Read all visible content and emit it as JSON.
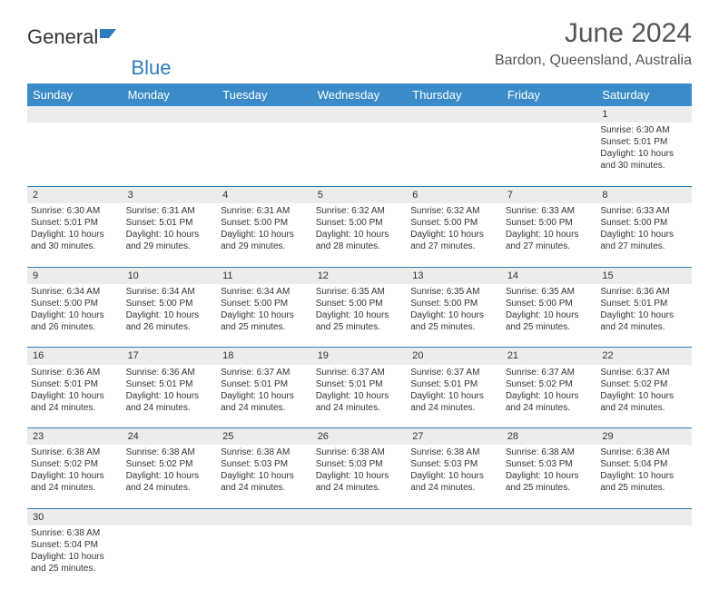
{
  "logo": {
    "text1": "General",
    "text2": "Blue"
  },
  "title": "June 2024",
  "location": "Bardon, Queensland, Australia",
  "colors": {
    "header_bg": "#3b8bc8",
    "header_text": "#ffffff",
    "daynum_bg": "#ececec",
    "row_border": "#2f7bbf",
    "text": "#333333"
  },
  "weekdays": [
    "Sunday",
    "Monday",
    "Tuesday",
    "Wednesday",
    "Thursday",
    "Friday",
    "Saturday"
  ],
  "weeks": [
    {
      "nums": [
        "",
        "",
        "",
        "",
        "",
        "",
        "1"
      ],
      "cells": [
        null,
        null,
        null,
        null,
        null,
        null,
        {
          "sunrise": "6:30 AM",
          "sunset": "5:01 PM",
          "daylight": "10 hours and 30 minutes."
        }
      ]
    },
    {
      "nums": [
        "2",
        "3",
        "4",
        "5",
        "6",
        "7",
        "8"
      ],
      "cells": [
        {
          "sunrise": "6:30 AM",
          "sunset": "5:01 PM",
          "daylight": "10 hours and 30 minutes."
        },
        {
          "sunrise": "6:31 AM",
          "sunset": "5:01 PM",
          "daylight": "10 hours and 29 minutes."
        },
        {
          "sunrise": "6:31 AM",
          "sunset": "5:00 PM",
          "daylight": "10 hours and 29 minutes."
        },
        {
          "sunrise": "6:32 AM",
          "sunset": "5:00 PM",
          "daylight": "10 hours and 28 minutes."
        },
        {
          "sunrise": "6:32 AM",
          "sunset": "5:00 PM",
          "daylight": "10 hours and 27 minutes."
        },
        {
          "sunrise": "6:33 AM",
          "sunset": "5:00 PM",
          "daylight": "10 hours and 27 minutes."
        },
        {
          "sunrise": "6:33 AM",
          "sunset": "5:00 PM",
          "daylight": "10 hours and 27 minutes."
        }
      ]
    },
    {
      "nums": [
        "9",
        "10",
        "11",
        "12",
        "13",
        "14",
        "15"
      ],
      "cells": [
        {
          "sunrise": "6:34 AM",
          "sunset": "5:00 PM",
          "daylight": "10 hours and 26 minutes."
        },
        {
          "sunrise": "6:34 AM",
          "sunset": "5:00 PM",
          "daylight": "10 hours and 26 minutes."
        },
        {
          "sunrise": "6:34 AM",
          "sunset": "5:00 PM",
          "daylight": "10 hours and 25 minutes."
        },
        {
          "sunrise": "6:35 AM",
          "sunset": "5:00 PM",
          "daylight": "10 hours and 25 minutes."
        },
        {
          "sunrise": "6:35 AM",
          "sunset": "5:00 PM",
          "daylight": "10 hours and 25 minutes."
        },
        {
          "sunrise": "6:35 AM",
          "sunset": "5:00 PM",
          "daylight": "10 hours and 25 minutes."
        },
        {
          "sunrise": "6:36 AM",
          "sunset": "5:01 PM",
          "daylight": "10 hours and 24 minutes."
        }
      ]
    },
    {
      "nums": [
        "16",
        "17",
        "18",
        "19",
        "20",
        "21",
        "22"
      ],
      "cells": [
        {
          "sunrise": "6:36 AM",
          "sunset": "5:01 PM",
          "daylight": "10 hours and 24 minutes."
        },
        {
          "sunrise": "6:36 AM",
          "sunset": "5:01 PM",
          "daylight": "10 hours and 24 minutes."
        },
        {
          "sunrise": "6:37 AM",
          "sunset": "5:01 PM",
          "daylight": "10 hours and 24 minutes."
        },
        {
          "sunrise": "6:37 AM",
          "sunset": "5:01 PM",
          "daylight": "10 hours and 24 minutes."
        },
        {
          "sunrise": "6:37 AM",
          "sunset": "5:01 PM",
          "daylight": "10 hours and 24 minutes."
        },
        {
          "sunrise": "6:37 AM",
          "sunset": "5:02 PM",
          "daylight": "10 hours and 24 minutes."
        },
        {
          "sunrise": "6:37 AM",
          "sunset": "5:02 PM",
          "daylight": "10 hours and 24 minutes."
        }
      ]
    },
    {
      "nums": [
        "23",
        "24",
        "25",
        "26",
        "27",
        "28",
        "29"
      ],
      "cells": [
        {
          "sunrise": "6:38 AM",
          "sunset": "5:02 PM",
          "daylight": "10 hours and 24 minutes."
        },
        {
          "sunrise": "6:38 AM",
          "sunset": "5:02 PM",
          "daylight": "10 hours and 24 minutes."
        },
        {
          "sunrise": "6:38 AM",
          "sunset": "5:03 PM",
          "daylight": "10 hours and 24 minutes."
        },
        {
          "sunrise": "6:38 AM",
          "sunset": "5:03 PM",
          "daylight": "10 hours and 24 minutes."
        },
        {
          "sunrise": "6:38 AM",
          "sunset": "5:03 PM",
          "daylight": "10 hours and 24 minutes."
        },
        {
          "sunrise": "6:38 AM",
          "sunset": "5:03 PM",
          "daylight": "10 hours and 25 minutes."
        },
        {
          "sunrise": "6:38 AM",
          "sunset": "5:04 PM",
          "daylight": "10 hours and 25 minutes."
        }
      ]
    },
    {
      "nums": [
        "30",
        "",
        "",
        "",
        "",
        "",
        ""
      ],
      "cells": [
        {
          "sunrise": "6:38 AM",
          "sunset": "5:04 PM",
          "daylight": "10 hours and 25 minutes."
        },
        null,
        null,
        null,
        null,
        null,
        null
      ]
    }
  ],
  "labels": {
    "sunrise": "Sunrise:",
    "sunset": "Sunset:",
    "daylight": "Daylight:"
  }
}
